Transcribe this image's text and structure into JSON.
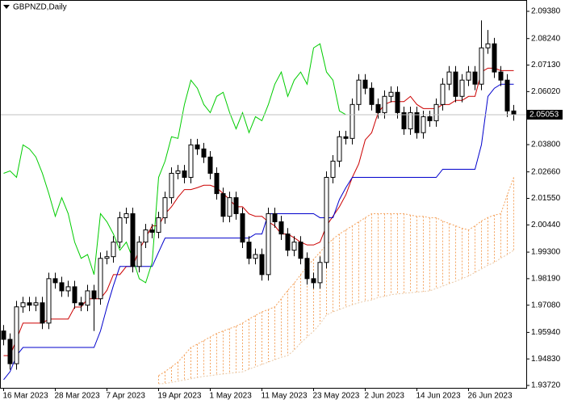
{
  "chart_data": {
    "type": "candlestick",
    "title": "GBPNZD,Daily",
    "categories": [
      "16 Mar 2023",
      null,
      null,
      null,
      null,
      null,
      null,
      null,
      "28 Mar 2023",
      null,
      null,
      null,
      null,
      null,
      null,
      null,
      "7 Apr 2023",
      null,
      null,
      null,
      null,
      null,
      null,
      null,
      "19 Apr 2023",
      null,
      null,
      null,
      null,
      null,
      null,
      null,
      "1 May 2023",
      null,
      null,
      null,
      null,
      null,
      null,
      null,
      "11 May 2023",
      null,
      null,
      null,
      null,
      null,
      null,
      null,
      "23 May 2023",
      null,
      null,
      null,
      null,
      null,
      null,
      null,
      "2 Jun 2023",
      null,
      null,
      null,
      null,
      null,
      null,
      null,
      "14 Jun 2023",
      null,
      null,
      null,
      null,
      null,
      null,
      null,
      "26 Jun 2023",
      null,
      null,
      null,
      null,
      null,
      null,
      null
    ],
    "open": [
      1.96,
      1.9565,
      1.9463,
      1.9701,
      1.9718,
      1.9708,
      1.9718,
      1.9633,
      1.9819,
      1.9802,
      1.9768,
      1.9785,
      1.9718,
      1.9708,
      1.9768,
      1.9735,
      1.9904,
      1.9911,
      1.9972,
      2.0074,
      2.0091,
      1.987,
      1.9972,
      2.0023,
      2.0013,
      2.0074,
      2.0158,
      2.026,
      2.027,
      2.0243,
      2.0379,
      2.0362,
      2.0328,
      2.026,
      2.0175,
      2.008,
      2.0158,
      2.0091,
      1.9972,
      1.9904,
      1.992,
      1.9836,
      2.0091,
      2.0057,
      2.0006,
      1.9938,
      1.9972,
      1.9904,
      1.9819,
      1.9802,
      1.9887,
      2.0243,
      2.0311,
      2.0413,
      2.0406,
      2.0548,
      2.065,
      2.0616,
      2.0548,
      2.0514,
      2.0582,
      2.0599,
      2.0514,
      2.0446,
      2.0514,
      2.043,
      2.0497,
      2.048,
      2.0548,
      2.0633,
      2.0684,
      2.0582,
      2.065,
      2.0684,
      2.0633,
      2.0785,
      2.0802,
      2.0684,
      2.065,
      2.0521
    ],
    "high": [
      1.9625,
      1.959,
      1.9726,
      1.9743,
      1.9743,
      1.9743,
      1.9743,
      1.9844,
      1.9844,
      1.9827,
      1.981,
      1.981,
      1.9743,
      1.9793,
      1.9793,
      1.9929,
      1.9936,
      1.9997,
      2.0099,
      2.0116,
      2.0116,
      1.9997,
      2.0048,
      2.0048,
      2.0099,
      2.0183,
      2.0285,
      2.0295,
      2.0295,
      2.0404,
      2.0404,
      2.0387,
      2.0353,
      2.0285,
      2.02,
      2.0183,
      2.0183,
      2.0116,
      1.9997,
      1.9945,
      1.9945,
      2.0116,
      2.0116,
      2.0082,
      2.0031,
      1.9997,
      1.9997,
      1.9929,
      1.9844,
      1.9912,
      2.0268,
      2.0336,
      2.0438,
      2.0438,
      2.0573,
      2.0675,
      2.0675,
      2.0641,
      2.0573,
      2.0607,
      2.0624,
      2.0624,
      2.0539,
      2.0539,
      2.0539,
      2.0522,
      2.0522,
      2.0573,
      2.0658,
      2.0709,
      2.0709,
      2.0675,
      2.0709,
      2.0709,
      2.09,
      2.086,
      2.0827,
      2.0709,
      2.0675,
      2.0546
    ],
    "low": [
      1.954,
      1.9438,
      1.9438,
      1.9676,
      1.9683,
      1.9683,
      1.9608,
      1.9608,
      1.9777,
      1.9743,
      1.9743,
      1.9693,
      1.9683,
      1.9683,
      1.96,
      1.971,
      1.9879,
      1.9886,
      1.9947,
      2.0049,
      1.9845,
      1.9845,
      1.9947,
      1.9988,
      1.9988,
      2.0049,
      2.0133,
      2.0235,
      2.0218,
      2.0218,
      2.0337,
      2.0303,
      2.0235,
      2.015,
      2.0055,
      2.0055,
      2.0066,
      1.9947,
      1.9879,
      1.9879,
      1.9811,
      1.9811,
      2.0032,
      1.9981,
      1.9913,
      1.9913,
      1.9879,
      1.9794,
      1.9777,
      1.9777,
      1.9862,
      2.0218,
      2.0286,
      2.0381,
      2.0381,
      2.0523,
      2.0591,
      2.0523,
      2.0489,
      2.0489,
      2.0557,
      2.0489,
      2.0421,
      2.0421,
      2.0405,
      2.0405,
      2.0455,
      2.0455,
      2.0523,
      2.0608,
      2.0557,
      2.0557,
      2.0625,
      2.0608,
      2.0608,
      2.076,
      2.0659,
      2.0625,
      2.0496,
      2.048
    ],
    "close": [
      1.9565,
      1.9463,
      1.9701,
      1.9718,
      1.9708,
      1.9718,
      1.9633,
      1.9819,
      1.9802,
      1.9768,
      1.9785,
      1.9718,
      1.9708,
      1.9768,
      1.9735,
      1.9904,
      1.9911,
      1.9972,
      2.0074,
      2.0091,
      1.987,
      1.9972,
      2.0023,
      2.0013,
      2.0074,
      2.0158,
      2.026,
      2.027,
      2.0243,
      2.0379,
      2.0362,
      2.0328,
      2.026,
      2.0175,
      2.008,
      2.0158,
      2.0091,
      1.9972,
      1.9904,
      1.992,
      1.9836,
      2.0091,
      2.0057,
      2.0006,
      1.9938,
      1.9972,
      1.9904,
      1.9819,
      1.9802,
      1.9887,
      2.0243,
      2.0311,
      2.0413,
      2.0406,
      2.0548,
      2.065,
      2.0616,
      2.0548,
      2.0514,
      2.0582,
      2.0599,
      2.0514,
      2.0446,
      2.0514,
      2.043,
      2.0497,
      2.048,
      2.0548,
      2.0633,
      2.0684,
      2.0582,
      2.065,
      2.0684,
      2.0633,
      2.0785,
      2.0802,
      2.0684,
      2.065,
      2.0521,
      2.05053
    ],
    "up_color": "#ffffff",
    "down_color": "#000000",
    "indicators": [
      {
        "color": "#cc0000",
        "style": "solid",
        "values": [
          1.9497,
          1.9497,
          1.9565,
          1.9633,
          1.9633,
          1.9633,
          1.9633,
          1.965,
          1.965,
          1.965,
          1.965,
          1.97,
          1.97,
          1.9735,
          1.9735,
          1.9735,
          1.977,
          1.9836,
          1.9836,
          1.987,
          1.987,
          1.994,
          1.999,
          2.004,
          2.004,
          2.009,
          2.012,
          2.016,
          2.0192,
          2.0192,
          2.02,
          2.021,
          2.021,
          2.02,
          2.0175,
          2.015,
          2.012,
          2.012,
          2.009,
          2.008,
          2.008,
          2.0057,
          2.004,
          2.0006,
          2.0006,
          1.999,
          1.9972,
          1.996,
          1.996,
          1.9972,
          2.004,
          2.008,
          2.012,
          2.017,
          2.0243,
          2.03,
          2.04,
          2.043,
          2.0514,
          2.0548,
          2.056,
          2.056,
          2.056,
          2.0582,
          2.0548,
          2.0531,
          2.0531,
          2.0531,
          2.0548,
          2.0548,
          2.0565,
          2.0565,
          2.0582,
          2.0582,
          2.0684,
          2.07,
          2.07,
          2.069,
          2.069,
          2.069
        ]
      },
      {
        "color": "#0000cc",
        "style": "solid",
        "values": [
          1.9396,
          1.943,
          1.9497,
          1.9531,
          1.9531,
          1.9531,
          1.9531,
          1.9531,
          1.9531,
          1.9531,
          1.9531,
          1.9531,
          1.9531,
          1.9531,
          1.9531,
          1.96,
          1.97,
          1.979,
          1.987,
          1.987,
          1.987,
          1.987,
          1.987,
          1.987,
          1.993,
          1.9989,
          1.9989,
          1.9989,
          1.9989,
          1.9989,
          1.9989,
          1.9989,
          1.9989,
          1.9989,
          1.9989,
          1.9989,
          1.9989,
          1.9989,
          1.9989,
          2.0006,
          2.0006,
          2.0091,
          2.0091,
          2.0091,
          2.0091,
          2.0091,
          2.0091,
          2.0091,
          2.0091,
          2.0074,
          2.0074,
          2.0074,
          2.015,
          2.02,
          2.0243,
          2.0243,
          2.0243,
          2.0243,
          2.0243,
          2.0243,
          2.0243,
          2.0243,
          2.0243,
          2.0243,
          2.0243,
          2.0243,
          2.0243,
          2.0243,
          2.0277,
          2.0277,
          2.0277,
          2.0277,
          2.0277,
          2.0277,
          2.038,
          2.0582,
          2.0616,
          2.0633,
          2.0633,
          2.0633
        ]
      },
      {
        "color": "#00cc00",
        "style": "solid",
        "values": [
          2.026,
          2.027,
          2.0243,
          2.0379,
          2.0362,
          2.0328,
          2.026,
          2.0175,
          2.008,
          2.0158,
          2.0091,
          1.9972,
          1.9904,
          1.992,
          1.9836,
          2.0091,
          2.0057,
          2.0006,
          1.9938,
          1.9972,
          1.9904,
          1.9819,
          1.9802,
          1.9887,
          2.0243,
          2.0311,
          2.0413,
          2.0406,
          2.0548,
          2.065,
          2.0616,
          2.0548,
          2.0514,
          2.0582,
          2.0599,
          2.0514,
          2.0446,
          2.0514,
          2.043,
          2.0497,
          2.048,
          2.0548,
          2.0633,
          2.0684,
          2.0582,
          2.065,
          2.0684,
          2.0633,
          2.0785,
          2.0802,
          2.0684,
          2.065,
          2.0521,
          2.05053,
          null,
          null,
          null,
          null,
          null,
          null,
          null,
          null,
          null,
          null,
          null,
          null,
          null,
          null,
          null,
          null,
          null,
          null,
          null,
          null,
          null,
          null,
          null,
          null,
          null,
          null
        ]
      },
      {
        "color": "#f4a460",
        "style": "dotted",
        "values": [
          null,
          null,
          null,
          null,
          null,
          null,
          null,
          null,
          null,
          null,
          null,
          null,
          null,
          null,
          null,
          null,
          null,
          null,
          null,
          null,
          null,
          null,
          null,
          null,
          1.9413,
          1.943,
          1.945,
          1.947,
          1.95,
          1.9531,
          1.9545,
          1.956,
          1.9575,
          1.959,
          1.96,
          1.961,
          1.962,
          1.9633,
          1.965,
          1.9665,
          1.968,
          1.969,
          1.9701,
          1.9735,
          1.977,
          1.98,
          1.9836,
          1.987,
          1.99,
          1.993,
          1.996,
          1.9985,
          2.0006,
          2.0023,
          2.004,
          2.0057,
          2.0074,
          2.0091,
          2.0091,
          2.0091,
          2.0091,
          2.0091,
          2.0091,
          2.0085,
          2.008,
          2.008,
          2.0074,
          2.0074,
          2.006,
          2.005,
          2.004,
          2.003,
          2.0023,
          2.004,
          2.006,
          2.0075,
          2.0085,
          2.0091,
          2.017,
          2.0243
        ]
      },
      {
        "color": "#e8c9a8",
        "style": "dotted",
        "values": [
          null,
          null,
          null,
          null,
          null,
          null,
          null,
          null,
          null,
          null,
          null,
          null,
          null,
          null,
          null,
          null,
          null,
          null,
          null,
          null,
          null,
          null,
          null,
          null,
          1.9379,
          1.938,
          1.9385,
          1.939,
          1.9395,
          1.94,
          1.9405,
          1.941,
          1.9413,
          1.9417,
          1.942,
          1.9423,
          1.9426,
          1.9429,
          1.944,
          1.945,
          1.946,
          1.947,
          1.948,
          1.949,
          1.9497,
          1.952,
          1.955,
          1.9575,
          1.9599,
          1.963,
          1.9667,
          1.968,
          1.969,
          1.97,
          1.971,
          1.9718,
          1.9725,
          1.973,
          1.974,
          1.9745,
          1.9752,
          1.9755,
          1.9758,
          1.976,
          1.9763,
          1.9765,
          1.9768,
          1.9778,
          1.9788,
          1.9798,
          1.9808,
          1.9819,
          1.983,
          1.9845,
          1.986,
          1.9875,
          1.9887,
          1.9905,
          1.992,
          1.9938
        ]
      }
    ],
    "cloud_color": "#f4a460",
    "ylim": [
      1.9362,
      2.0982
    ],
    "yticks": [
      {
        "value": 2.0938,
        "label": "2.09380"
      },
      {
        "value": 2.0824,
        "label": "2.08240"
      },
      {
        "value": 2.0713,
        "label": "2.07130"
      },
      {
        "value": 2.0602,
        "label": "2.06020"
      },
      {
        "value": 2.038,
        "label": "2.03800"
      },
      {
        "value": 2.0266,
        "label": "2.02660"
      },
      {
        "value": 2.0155,
        "label": "2.01550"
      },
      {
        "value": 2.0044,
        "label": "2.00440"
      },
      {
        "value": 1.993,
        "label": "1.99300"
      },
      {
        "value": 1.9819,
        "label": "1.98190"
      },
      {
        "value": 1.9708,
        "label": "1.97080"
      },
      {
        "value": 1.9594,
        "label": "1.95940"
      },
      {
        "value": 1.9483,
        "label": "1.94830"
      },
      {
        "value": 1.9372,
        "label": "1.93720"
      }
    ],
    "current_price": 2.05053
  }
}
